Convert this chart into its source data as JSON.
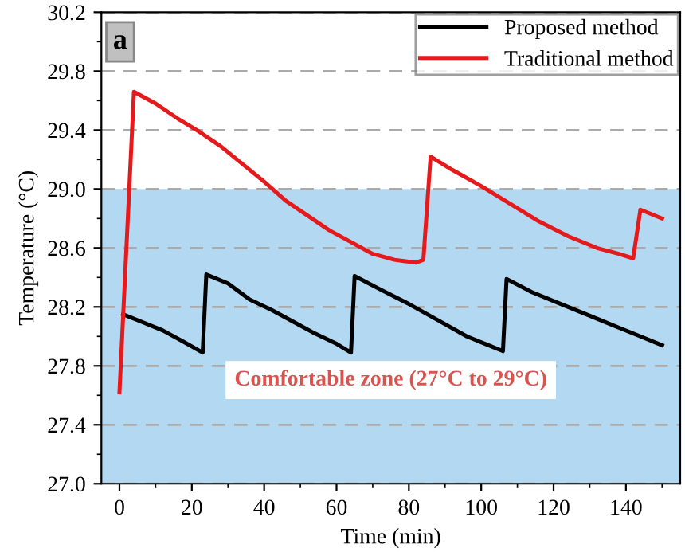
{
  "chart_data": {
    "type": "line",
    "xlabel": "Time (min)",
    "ylabel": "Temperature (°C)",
    "annotations": [
      "a"
    ],
    "series": [
      {
        "name": "Proposed method",
        "color": "#000000",
        "x": [
          1,
          6,
          12,
          18,
          23,
          24,
          30,
          36,
          42,
          48,
          54,
          60,
          64,
          65,
          72,
          80,
          88,
          96,
          102,
          106,
          107,
          114,
          122,
          130,
          138,
          144,
          150
        ],
        "values": [
          28.15,
          28.1,
          28.04,
          27.96,
          27.89,
          28.42,
          28.36,
          28.25,
          28.18,
          28.1,
          28.02,
          27.95,
          27.89,
          28.41,
          28.32,
          28.22,
          28.11,
          28.0,
          27.94,
          27.9,
          28.39,
          28.3,
          28.22,
          28.14,
          28.06,
          28.0,
          27.94
        ]
      },
      {
        "name": "Traditional method",
        "color": "#e41a1c",
        "x": [
          0,
          4,
          10,
          16,
          22,
          28,
          34,
          40,
          46,
          52,
          58,
          64,
          70,
          76,
          82,
          84,
          86,
          92,
          100,
          108,
          116,
          124,
          132,
          138,
          142,
          144,
          150
        ],
        "values": [
          27.62,
          29.66,
          29.58,
          29.48,
          29.39,
          29.29,
          29.17,
          29.05,
          28.92,
          28.82,
          28.72,
          28.64,
          28.56,
          28.52,
          28.5,
          28.52,
          29.22,
          29.13,
          29.02,
          28.9,
          28.78,
          28.68,
          28.6,
          28.56,
          28.53,
          28.86,
          28.8
        ]
      }
    ],
    "xlim": [
      -5,
      155
    ],
    "xticks": [
      0,
      20,
      40,
      60,
      80,
      100,
      120,
      140
    ],
    "ylim": [
      27.0,
      30.2
    ],
    "yticks": [
      {
        "value": 27.0,
        "label": "27.0"
      },
      {
        "value": 27.4,
        "label": "27.4"
      },
      {
        "value": 27.8,
        "label": "27.8"
      },
      {
        "value": 28.2,
        "label": "28.2"
      },
      {
        "value": 28.6,
        "label": "28.6"
      },
      {
        "value": 29.0,
        "label": "29.0"
      },
      {
        "value": 29.4,
        "label": "29.4"
      },
      {
        "value": 29.8,
        "label": "29.8"
      },
      {
        "value": 30.2,
        "label": "30.2"
      }
    ],
    "bands": [
      {
        "axis": "y",
        "from": 27.0,
        "to": 29.0,
        "label": "Comfortable zone (27°C to 29°C)",
        "color": "#b3d9f2"
      }
    ],
    "grid": "y",
    "legend": "top right",
    "line_style": "solid",
    "marker": "none"
  }
}
